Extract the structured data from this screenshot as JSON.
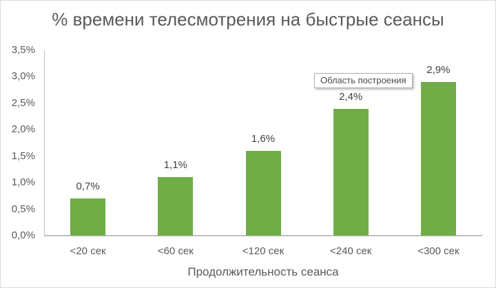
{
  "chart": {
    "title": "% времени телесмотрения на быстрые сеансы",
    "plot_area_tooltip": "Область построения"
  },
  "chart_data": {
    "type": "bar",
    "title": "% времени телесмотрения на быстрые сеансы",
    "xlabel": "Продолжительность сеанса",
    "ylabel": "",
    "categories": [
      "<20 сек",
      "<60 сек",
      "<120 сек",
      "<240 сек",
      "<300 сек"
    ],
    "values": [
      0.7,
      1.1,
      1.6,
      2.4,
      2.9
    ],
    "data_labels": [
      "0,7%",
      "1,1%",
      "1,6%",
      "2,4%",
      "2,9%"
    ],
    "y_ticks": [
      "0,0%",
      "0,5%",
      "1,0%",
      "1,5%",
      "2,0%",
      "2,5%",
      "3,0%",
      "3,5%"
    ],
    "ylim": [
      0,
      3.5
    ],
    "grid": false,
    "legend": false,
    "bar_color": "#70AD47",
    "axis_line_color": "#BFBFBF",
    "text_color": "#595959",
    "data_label_color": "#404040",
    "overlay_tooltip": "Область построения"
  }
}
